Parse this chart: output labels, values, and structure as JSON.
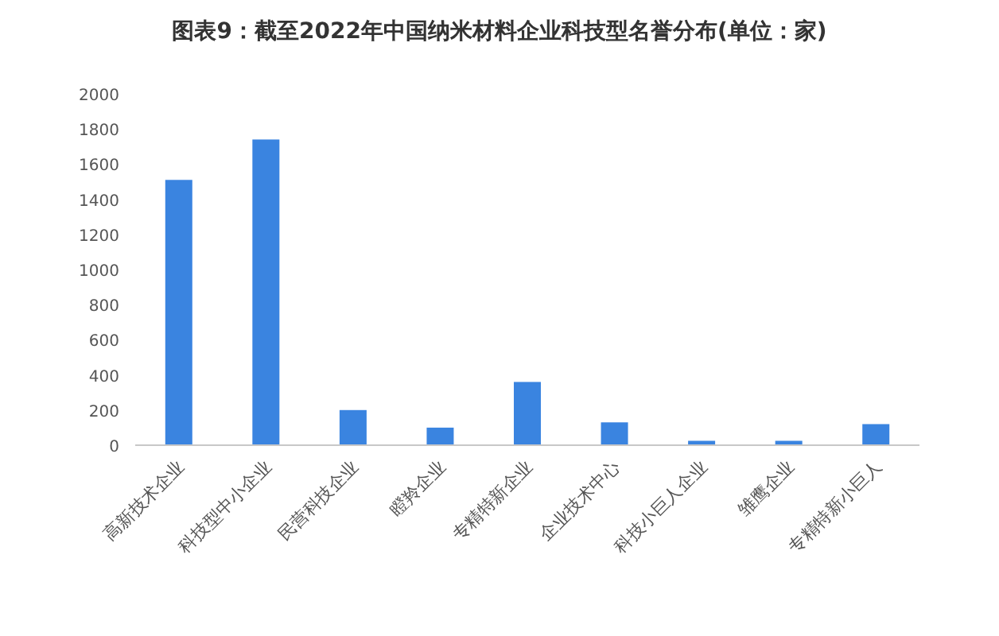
{
  "chart_data": {
    "type": "bar",
    "title": "图表9：截至2022年中国纳米材料企业科技型名誉分布(单位：家)",
    "categories": [
      "高新技术企业",
      "科技型中小企业",
      "民营科技企业",
      "瞪羚企业",
      "专精特新企业",
      "企业技术中心",
      "科技小巨人企业",
      "雏鹰企业",
      "专精特新小巨人"
    ],
    "values": [
      1510,
      1740,
      200,
      100,
      360,
      130,
      25,
      25,
      120
    ],
    "color": "#3a84e0",
    "ylim": [
      0,
      2000
    ],
    "yticks": [
      0,
      200,
      400,
      600,
      800,
      1000,
      1200,
      1400,
      1600,
      1800,
      2000
    ],
    "grid": false
  }
}
